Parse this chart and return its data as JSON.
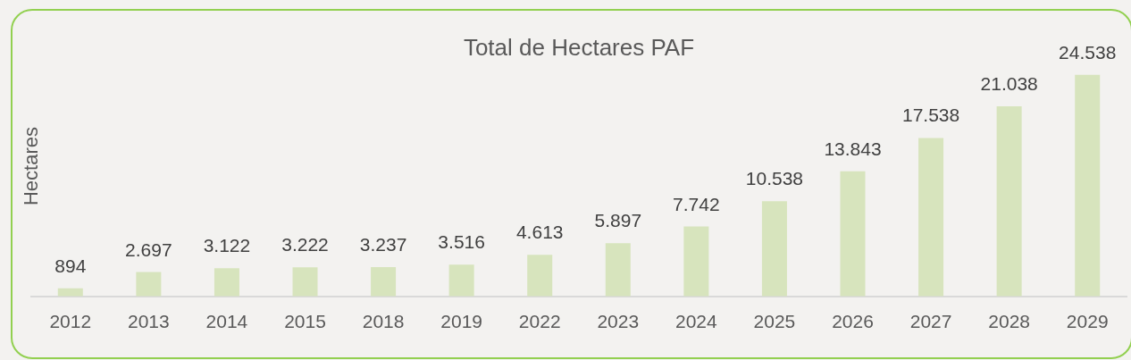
{
  "chart_data": {
    "type": "bar",
    "title": "Total de Hectares PAF",
    "ylabel": "Hectares",
    "categories": [
      "2012",
      "2013",
      "2014",
      "2015",
      "2018",
      "2019",
      "2022",
      "2023",
      "2024",
      "2025",
      "2026",
      "2027",
      "2028",
      "2029"
    ],
    "values": [
      894,
      2697,
      3122,
      3222,
      3237,
      3516,
      4613,
      5897,
      7742,
      10538,
      13843,
      17538,
      21038,
      24538
    ],
    "value_labels": [
      "894",
      "2.697",
      "3.122",
      "3.222",
      "3.237",
      "3.516",
      "4.613",
      "5.897",
      "7.742",
      "10.538",
      "13.843",
      "17.538",
      "21.038",
      "24.538"
    ],
    "color": "#d7e4bd"
  }
}
